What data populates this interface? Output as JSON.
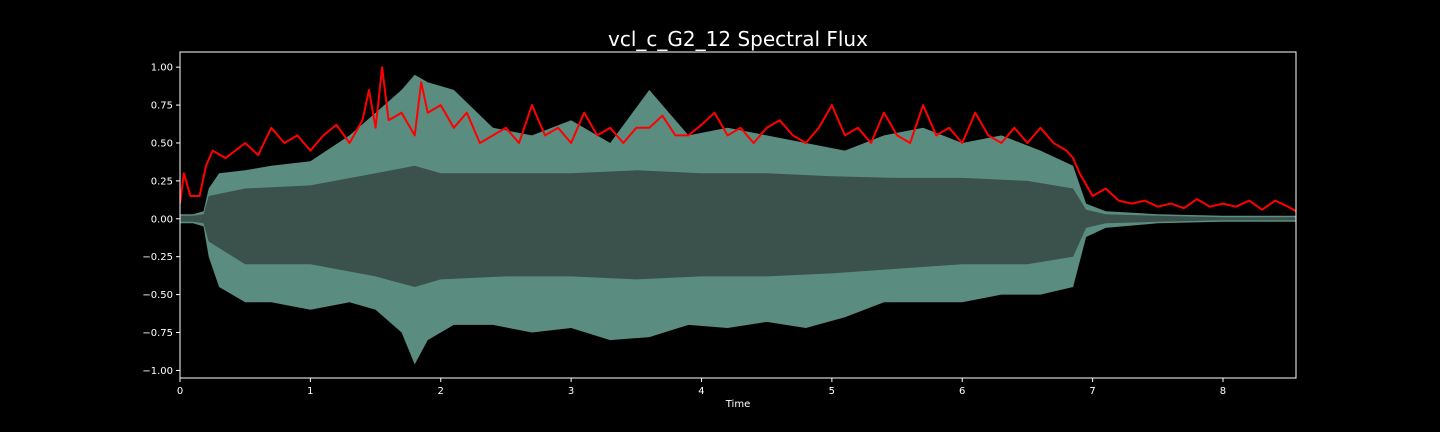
{
  "chart_data": {
    "type": "line",
    "title": "vcl_c_G2_12 Spectral Flux",
    "xlabel": "Time",
    "ylabel": "",
    "xlim": [
      0,
      8.56
    ],
    "ylim": [
      -1.05,
      1.1
    ],
    "x_ticks": [
      0,
      1,
      2,
      3,
      4,
      5,
      6,
      7,
      8
    ],
    "x_tick_labels": [
      "0",
      "1",
      "2",
      "3",
      "4",
      "5",
      "6",
      "7",
      "8"
    ],
    "y_ticks": [
      -1.0,
      -0.75,
      -0.5,
      -0.25,
      0.0,
      0.25,
      0.5,
      0.75,
      1.0
    ],
    "y_tick_labels": [
      "−1.00",
      "−0.75",
      "−0.50",
      "−0.25",
      "0.00",
      "0.25",
      "0.50",
      "0.75",
      "1.00"
    ],
    "grid": false,
    "legend": "none",
    "colors": {
      "background": "#000000",
      "waveform_envelope": "#5b8c80",
      "waveform_rms": "#3a524b",
      "spectral_flux": "#ff0000",
      "axes": "#ffffff"
    },
    "series": [
      {
        "kind": "waveform-envelope",
        "x": [
          0,
          0.1,
          0.18,
          0.22,
          0.3,
          0.5,
          0.7,
          1.0,
          1.3,
          1.5,
          1.7,
          1.8,
          1.9,
          2.1,
          2.4,
          2.7,
          3.0,
          3.3,
          3.6,
          3.9,
          4.2,
          4.5,
          4.8,
          5.1,
          5.4,
          5.7,
          6.0,
          6.3,
          6.6,
          6.85,
          6.95,
          7.1,
          7.5,
          8.0,
          8.56
        ],
        "upper": [
          0.03,
          0.03,
          0.05,
          0.2,
          0.3,
          0.32,
          0.35,
          0.38,
          0.55,
          0.7,
          0.85,
          0.95,
          0.9,
          0.85,
          0.6,
          0.55,
          0.65,
          0.5,
          0.85,
          0.55,
          0.6,
          0.55,
          0.5,
          0.45,
          0.55,
          0.6,
          0.5,
          0.55,
          0.45,
          0.35,
          0.1,
          0.05,
          0.03,
          0.02,
          0.02
        ],
        "lower": [
          -0.03,
          -0.03,
          -0.05,
          -0.25,
          -0.45,
          -0.55,
          -0.55,
          -0.6,
          -0.55,
          -0.6,
          -0.75,
          -0.96,
          -0.8,
          -0.7,
          -0.7,
          -0.75,
          -0.72,
          -0.8,
          -0.78,
          -0.7,
          -0.72,
          -0.68,
          -0.72,
          -0.65,
          -0.55,
          -0.55,
          -0.55,
          -0.5,
          -0.5,
          -0.45,
          -0.12,
          -0.06,
          -0.03,
          -0.02,
          -0.02
        ]
      },
      {
        "kind": "waveform-rms",
        "x": [
          0,
          0.1,
          0.18,
          0.22,
          0.5,
          1.0,
          1.5,
          1.8,
          2.0,
          2.5,
          3.0,
          3.5,
          4.0,
          4.5,
          5.0,
          5.5,
          6.0,
          6.5,
          6.85,
          6.95,
          7.1,
          7.5,
          8.0,
          8.56
        ],
        "upper": [
          0.02,
          0.02,
          0.03,
          0.15,
          0.2,
          0.22,
          0.3,
          0.35,
          0.3,
          0.3,
          0.3,
          0.32,
          0.3,
          0.3,
          0.28,
          0.27,
          0.27,
          0.25,
          0.2,
          0.06,
          0.03,
          0.02,
          0.01,
          0.01
        ],
        "lower": [
          -0.02,
          -0.02,
          -0.03,
          -0.15,
          -0.3,
          -0.3,
          -0.38,
          -0.45,
          -0.4,
          -0.38,
          -0.38,
          -0.4,
          -0.38,
          -0.38,
          -0.36,
          -0.33,
          -0.3,
          -0.3,
          -0.25,
          -0.06,
          -0.03,
          -0.02,
          -0.01,
          -0.01
        ]
      },
      {
        "kind": "spectral-flux",
        "x": [
          0,
          0.03,
          0.08,
          0.15,
          0.2,
          0.25,
          0.35,
          0.5,
          0.6,
          0.7,
          0.8,
          0.9,
          1.0,
          1.1,
          1.2,
          1.3,
          1.4,
          1.45,
          1.5,
          1.55,
          1.6,
          1.7,
          1.8,
          1.85,
          1.9,
          2.0,
          2.1,
          2.2,
          2.3,
          2.4,
          2.5,
          2.6,
          2.7,
          2.8,
          2.9,
          3.0,
          3.1,
          3.2,
          3.3,
          3.4,
          3.5,
          3.6,
          3.7,
          3.8,
          3.9,
          4.0,
          4.1,
          4.2,
          4.3,
          4.4,
          4.5,
          4.6,
          4.7,
          4.8,
          4.9,
          5.0,
          5.1,
          5.2,
          5.3,
          5.4,
          5.5,
          5.6,
          5.7,
          5.8,
          5.9,
          6.0,
          6.1,
          6.2,
          6.3,
          6.4,
          6.5,
          6.6,
          6.7,
          6.8,
          6.85,
          6.9,
          7.0,
          7.1,
          7.2,
          7.3,
          7.4,
          7.5,
          7.6,
          7.7,
          7.8,
          7.9,
          8.0,
          8.1,
          8.2,
          8.3,
          8.4,
          8.5,
          8.56
        ],
        "y": [
          0.1,
          0.3,
          0.15,
          0.15,
          0.35,
          0.45,
          0.4,
          0.5,
          0.42,
          0.6,
          0.5,
          0.55,
          0.45,
          0.55,
          0.62,
          0.5,
          0.65,
          0.85,
          0.6,
          1.0,
          0.65,
          0.7,
          0.55,
          0.9,
          0.7,
          0.75,
          0.6,
          0.7,
          0.5,
          0.55,
          0.6,
          0.5,
          0.75,
          0.55,
          0.6,
          0.5,
          0.7,
          0.55,
          0.6,
          0.5,
          0.6,
          0.6,
          0.68,
          0.55,
          0.55,
          0.62,
          0.7,
          0.55,
          0.6,
          0.5,
          0.6,
          0.65,
          0.55,
          0.5,
          0.6,
          0.75,
          0.55,
          0.6,
          0.5,
          0.7,
          0.55,
          0.5,
          0.75,
          0.55,
          0.6,
          0.5,
          0.7,
          0.55,
          0.5,
          0.6,
          0.5,
          0.6,
          0.5,
          0.45,
          0.4,
          0.3,
          0.15,
          0.2,
          0.12,
          0.1,
          0.12,
          0.08,
          0.1,
          0.07,
          0.13,
          0.08,
          0.1,
          0.08,
          0.12,
          0.06,
          0.12,
          0.08,
          0.05
        ]
      }
    ]
  }
}
